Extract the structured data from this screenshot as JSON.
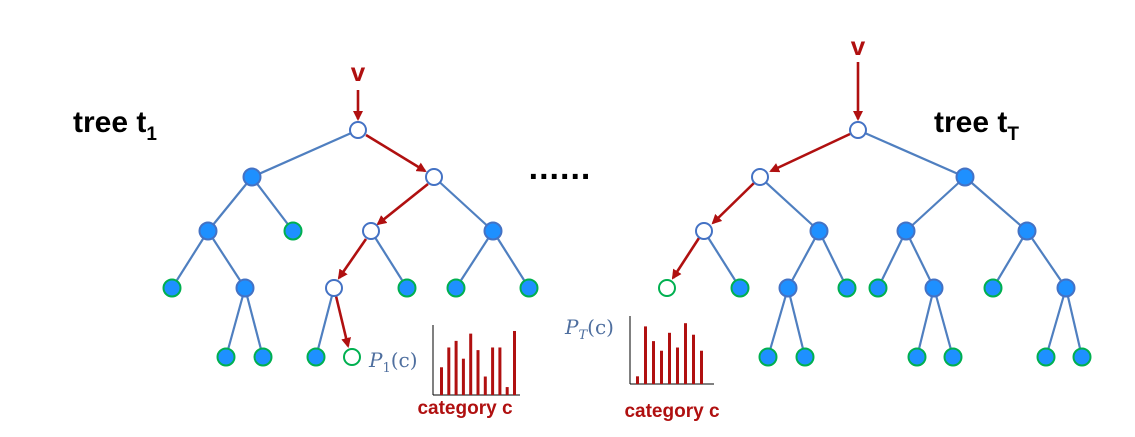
{
  "colors": {
    "edge": "#4f7fc0",
    "path": "#b01010",
    "inner_fill": "#1e90ff",
    "inner_stroke": "#4472c4",
    "leaf_fill": "#1e90ff",
    "leaf_stroke": "#00b050",
    "visited_fill": "#ffffff",
    "bar": "#b01010",
    "text": "#000000",
    "math": "#4f6f9f"
  },
  "labels": {
    "input_1": "v",
    "input_2": "v",
    "tree_1_prefix": "tree t",
    "tree_1_sub": "1",
    "tree_2_prefix": "tree t",
    "tree_2_sub": "T",
    "dots": "......",
    "dist_1_prefix": "P",
    "dist_1_sub": "1",
    "dist_1_suffix": "(c)",
    "dist_2_prefix": "P",
    "dist_2_sub": "T",
    "dist_2_suffix": "(c)",
    "category_1": "category c",
    "category_2": "category c"
  },
  "histograms": {
    "hist_1": [
      0.42,
      0.72,
      0.82,
      0.55,
      0.93,
      0.68,
      0.28,
      0.72,
      0.72,
      0.12,
      0.97
    ],
    "hist_2": [
      0.12,
      0.9,
      0.67,
      0.52,
      0.8,
      0.57,
      0.95,
      0.77,
      0.52
    ]
  }
}
